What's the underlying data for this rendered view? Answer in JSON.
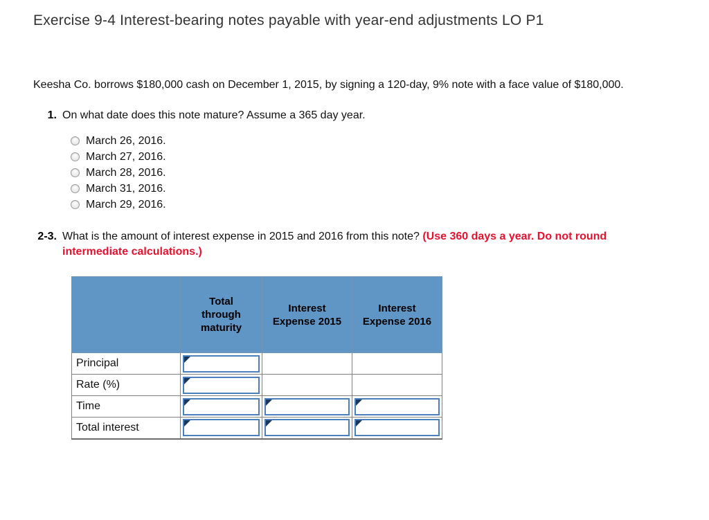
{
  "title": "Exercise 9-4 Interest-bearing notes payable with year-end adjustments LO P1",
  "intro": "Keesha Co. borrows $180,000 cash on December 1, 2015, by signing a 120-day, 9% note with a face value of $180,000.",
  "q1": {
    "number": "1.",
    "text": "On what date does this note mature? Assume a 365 day year.",
    "options": [
      "March 26, 2016.",
      "March 27, 2016.",
      "March 28, 2016.",
      "March 31, 2016.",
      "March 29, 2016."
    ]
  },
  "q23": {
    "number": "2-3.",
    "text": "What is the amount of interest expense in 2015 and 2016 from this note?",
    "note": "(Use 360 days a year. Do not round intermediate calculations.)"
  },
  "table": {
    "headers": [
      "",
      "Total through maturity",
      "Interest Expense 2015",
      "Interest Expense 2016"
    ],
    "rows": [
      {
        "label": "Principal",
        "inputs": [
          true,
          false,
          false
        ]
      },
      {
        "label": "Rate (%)",
        "inputs": [
          true,
          false,
          false
        ]
      },
      {
        "label": "Time",
        "inputs": [
          true,
          true,
          true
        ]
      },
      {
        "label": "Total interest",
        "inputs": [
          true,
          true,
          true
        ]
      }
    ]
  },
  "colors": {
    "header_bg": "#6096c6",
    "input_border": "#4a7ebc",
    "cell_marker": "#17375e",
    "note_red": "#e8112d"
  }
}
